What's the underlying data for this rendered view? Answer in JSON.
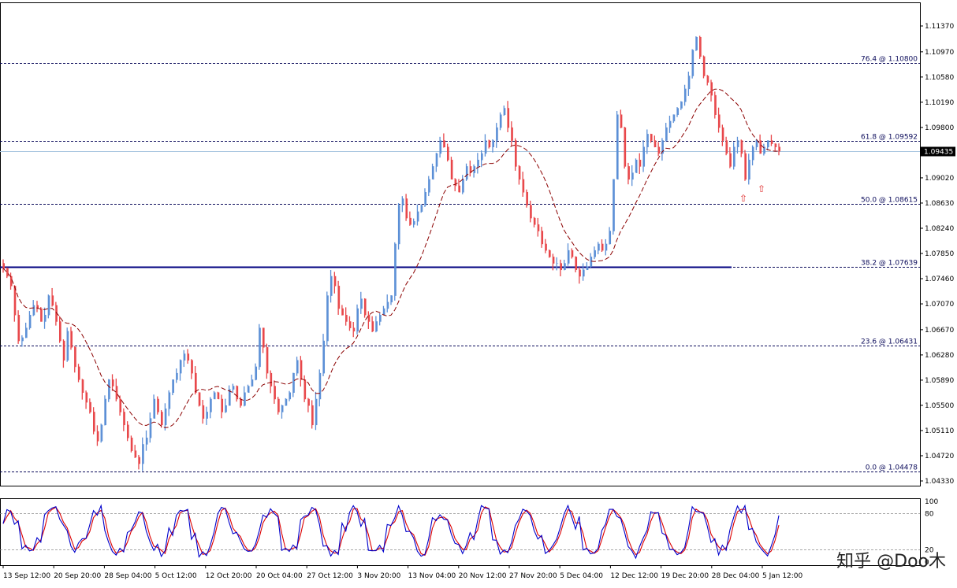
{
  "chart_data": [
    {
      "type": "candlestick",
      "symbol_price_axis": {
        "ylim": [
          1.0433,
          1.1137
        ],
        "ticks": [
          "1.11370",
          "1.10970",
          "1.10580",
          "1.10190",
          "1.09800",
          "1.09020",
          "1.08630",
          "1.08240",
          "1.07850",
          "1.07460",
          "1.07070",
          "1.06670",
          "1.06280",
          "1.05890",
          "1.05500",
          "1.05110",
          "1.04720",
          "1.04330"
        ],
        "current_price": "1.09435",
        "current_price_value": 1.09435
      },
      "x_axis": {
        "ticks": [
          "13 Sep 12:00",
          "20 Sep 20:00",
          "28 Sep 04:00",
          "5 Oct 12:00",
          "12 Oct 20:00",
          "20 Oct 04:00",
          "27 Oct 12:00",
          "3 Nov 20:00",
          "13 Nov 04:00",
          "20 Nov 12:00",
          "27 Nov 20:00",
          "5 Dec 04:00",
          "12 Dec 12:00",
          "19 Dec 20:00",
          "28 Dec 04:00",
          "5 Jan 12:00"
        ]
      },
      "fibonacci_levels": [
        {
          "label": "76.4 @ 1.10800",
          "price": 1.108
        },
        {
          "label": "61.8 @ 1.09592",
          "price": 1.09592
        },
        {
          "label": "50.0 @ 1.08615",
          "price": 1.08615
        },
        {
          "label": "38.2 @ 1.07639",
          "price": 1.07639
        },
        {
          "label": "23.6 @ 1.06431",
          "price": 1.06431
        },
        {
          "label": "0.0 @ 1.04478",
          "price": 1.04478
        }
      ],
      "horizontal_line": {
        "price": 1.07639,
        "color": "#000080"
      },
      "close_series": [
        1.0762,
        1.075,
        1.0735,
        1.069,
        1.065,
        1.0655,
        1.067,
        1.069,
        1.0705,
        1.07,
        1.068,
        1.069,
        1.072,
        1.0705,
        1.068,
        1.065,
        1.062,
        1.0665,
        1.064,
        1.061,
        1.059,
        1.057,
        1.0555,
        1.054,
        1.051,
        1.0495,
        1.052,
        1.056,
        1.059,
        1.058,
        1.056,
        1.054,
        1.052,
        1.05,
        1.048,
        1.047,
        1.046,
        1.049,
        1.05,
        1.053,
        1.056,
        1.054,
        1.052,
        1.0545,
        1.057,
        1.059,
        1.06,
        1.062,
        1.063,
        1.062,
        1.06,
        1.057,
        1.055,
        1.053,
        1.054,
        1.056,
        1.057,
        1.056,
        1.054,
        1.055,
        1.0575,
        1.058,
        1.056,
        1.055,
        1.057,
        1.058,
        1.059,
        1.061,
        1.067,
        1.064,
        1.06,
        1.058,
        1.056,
        1.054,
        1.055,
        1.056,
        1.057,
        1.06,
        1.062,
        1.059,
        1.056,
        1.055,
        1.052,
        1.056,
        1.06,
        1.065,
        1.072,
        1.075,
        1.0735,
        1.07,
        1.069,
        1.068,
        1.067,
        1.0665,
        1.07,
        1.0715,
        1.069,
        1.068,
        1.0665,
        1.068,
        1.069,
        1.07,
        1.071,
        1.072,
        1.08,
        1.086,
        1.087,
        1.084,
        1.083,
        1.0835,
        1.085,
        1.086,
        1.088,
        1.09,
        1.092,
        1.094,
        1.096,
        1.095,
        1.093,
        1.09,
        1.089,
        1.088,
        1.09,
        1.092,
        1.091,
        1.092,
        1.093,
        1.094,
        1.096,
        1.095,
        1.096,
        1.098,
        1.1,
        1.101,
        1.098,
        1.096,
        1.092,
        1.09,
        1.088,
        1.086,
        1.084,
        1.083,
        1.082,
        1.08,
        1.079,
        1.078,
        1.077,
        1.077,
        1.076,
        1.077,
        1.079,
        1.078,
        1.076,
        1.075,
        1.076,
        1.0765,
        1.078,
        1.079,
        1.08,
        1.079,
        1.08,
        1.082,
        1.09,
        1.1,
        1.098,
        1.092,
        1.09,
        1.091,
        1.093,
        1.092,
        1.095,
        1.097,
        1.096,
        1.095,
        1.094,
        1.096,
        1.098,
        1.099,
        1.1,
        1.101,
        1.102,
        1.104,
        1.106,
        1.11,
        1.112,
        1.109,
        1.106,
        1.105,
        1.103,
        1.1,
        1.098,
        1.096,
        1.094,
        1.092,
        1.095,
        1.096,
        1.094,
        1.09,
        1.093,
        1.095,
        1.096,
        1.094,
        1.095,
        1.096,
        1.0955,
        1.095,
        1.09435
      ],
      "moving_average": {
        "style": "dashed",
        "color": "#8b0000"
      },
      "markers": [
        {
          "glyph": "⇧",
          "color": "#e03030",
          "near_price": 1.087
        },
        {
          "glyph": "⇧",
          "color": "#e03030",
          "near_price": 1.088
        }
      ]
    },
    {
      "type": "line",
      "name_printed": "",
      "ylim": [
        0,
        100
      ],
      "ticks": [
        "100",
        "80",
        "20",
        "0"
      ],
      "series_colors": [
        "#0000cc",
        "#dd0000"
      ]
    }
  ],
  "watermark": "知乎 @Doo木"
}
